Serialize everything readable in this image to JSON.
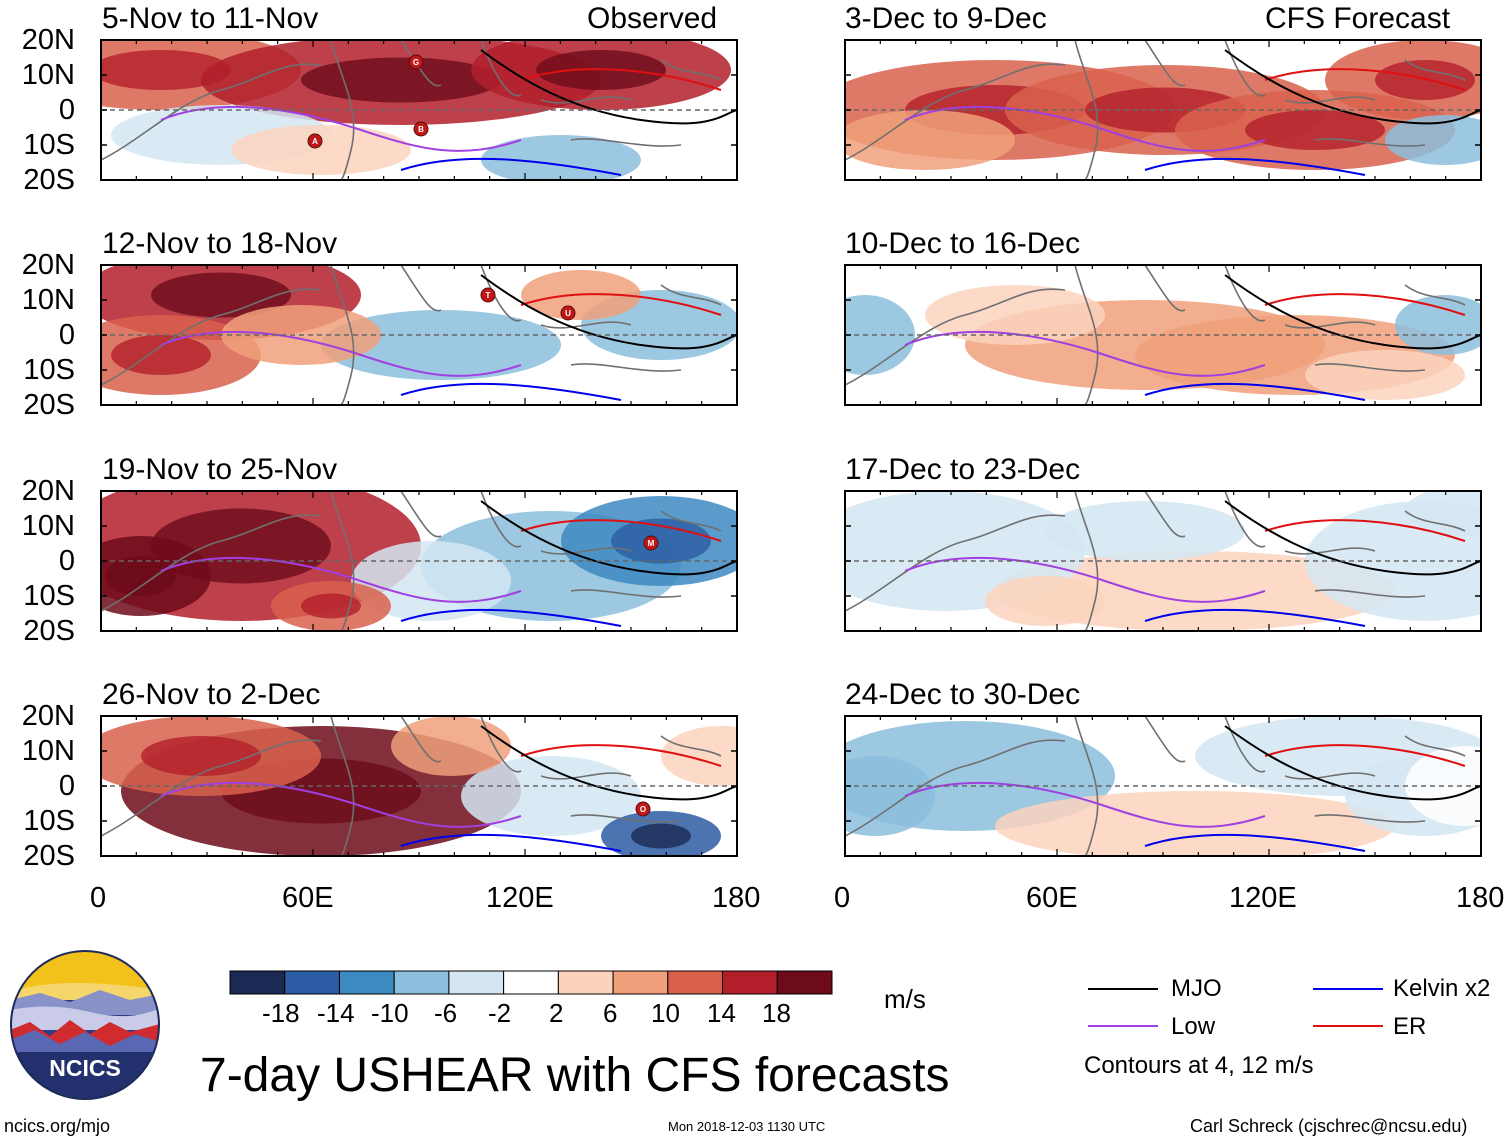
{
  "chart_data": {
    "type": "heatmap",
    "title": "7-day USHEAR with CFS forecasts",
    "variable": "USHEAR",
    "units": "m/s",
    "x_axis": {
      "ticks": [
        "0",
        "60E",
        "120E",
        "180"
      ],
      "range": [
        0,
        180
      ]
    },
    "y_axis": {
      "ticks": [
        "20N",
        "10N",
        "0",
        "10S",
        "20S"
      ],
      "range": [
        -20,
        20
      ]
    },
    "columns": [
      {
        "label": "Observed",
        "panels": [
          {
            "title": "5-Nov to 11-Nov",
            "storms": [
              "A",
              "B",
              "G"
            ]
          },
          {
            "title": "12-Nov to 18-Nov",
            "storms": [
              "T",
              "U"
            ]
          },
          {
            "title": "19-Nov to 25-Nov",
            "storms": [
              "M"
            ]
          },
          {
            "title": "26-Nov to 2-Dec",
            "storms": [
              "O"
            ]
          }
        ]
      },
      {
        "label": "CFS Forecast",
        "panels": [
          {
            "title": "3-Dec to 9-Dec",
            "storms": []
          },
          {
            "title": "10-Dec to 16-Dec",
            "storms": []
          },
          {
            "title": "17-Dec to 23-Dec",
            "storms": []
          },
          {
            "title": "24-Dec to 30-Dec",
            "storms": []
          }
        ]
      }
    ],
    "colorbar": {
      "labels": [
        "-18",
        "-14",
        "-10",
        "-6",
        "-2",
        "2",
        "6",
        "10",
        "14",
        "18"
      ],
      "colors": [
        "#1b2a55",
        "#2c5ca3",
        "#3d89c2",
        "#8cbedd",
        "#d3e6f2",
        "#ffffff",
        "#fbd3bd",
        "#f0a07a",
        "#d9614c",
        "#b21f2b",
        "#6d0b1a"
      ],
      "units": "m/s"
    },
    "contours": {
      "legend": [
        {
          "name": "MJO",
          "color": "#000000"
        },
        {
          "name": "Kelvin x2",
          "color": "#0000ee"
        },
        {
          "name": "Low",
          "color": "#a040e0"
        },
        {
          "name": "ER",
          "color": "#e01010"
        }
      ],
      "note": "Contours at 4, 12 m/s"
    }
  },
  "footer": {
    "url": "ncics.org/mjo",
    "timestamp": "Mon 2018-12-03 1130 UTC",
    "author": "Carl Schreck (cjschrec@ncsu.edu)",
    "logo_text": "NCICS"
  }
}
